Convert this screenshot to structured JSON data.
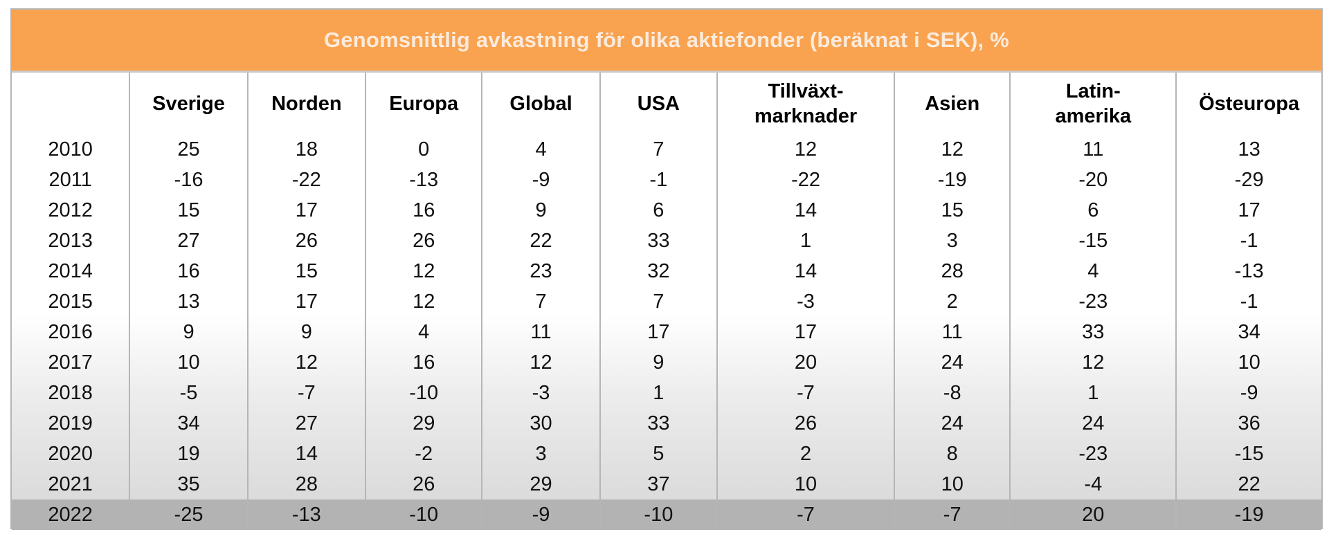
{
  "title": "Genomsnittlig avkastning för olika aktiefonder (beräknat i SEK), %",
  "colors": {
    "header": "#f9a24f",
    "highlight_row": "#b3b3b3"
  },
  "columns": [
    "",
    "Sverige",
    "Norden",
    "Europa",
    "Global",
    "USA",
    "Tillväxt-\nmarknader",
    "Asien",
    "Latin-\namerika",
    "Östeuropa"
  ],
  "rows": [
    [
      "2010",
      "25",
      "18",
      "0",
      "4",
      "7",
      "12",
      "12",
      "11",
      "13"
    ],
    [
      "2011",
      "-16",
      "-22",
      "-13",
      "-9",
      "-1",
      "-22",
      "-19",
      "-20",
      "-29"
    ],
    [
      "2012",
      "15",
      "17",
      "16",
      "9",
      "6",
      "14",
      "15",
      "6",
      "17"
    ],
    [
      "2013",
      "27",
      "26",
      "26",
      "22",
      "33",
      "1",
      "3",
      "-15",
      "-1"
    ],
    [
      "2014",
      "16",
      "15",
      "12",
      "23",
      "32",
      "14",
      "28",
      "4",
      "-13"
    ],
    [
      "2015",
      "13",
      "17",
      "12",
      "7",
      "7",
      "-3",
      "2",
      "-23",
      "-1"
    ],
    [
      "2016",
      "9",
      "9",
      "4",
      "11",
      "17",
      "17",
      "11",
      "33",
      "34"
    ],
    [
      "2017",
      "10",
      "12",
      "16",
      "12",
      "9",
      "20",
      "24",
      "12",
      "10"
    ],
    [
      "2018",
      "-5",
      "-7",
      "-10",
      "-3",
      "1",
      "-7",
      "-8",
      "1",
      "-9"
    ],
    [
      "2019",
      "34",
      "27",
      "29",
      "30",
      "33",
      "26",
      "24",
      "24",
      "36"
    ],
    [
      "2020",
      "19",
      "14",
      "-2",
      "3",
      "5",
      "2",
      "8",
      "-23",
      "-15"
    ],
    [
      "2021",
      "35",
      "28",
      "26",
      "29",
      "37",
      "10",
      "10",
      "-4",
      "22"
    ],
    [
      "2022",
      "-25",
      "-13",
      "-10",
      "-9",
      "-10",
      "-7",
      "-7",
      "20",
      "-19"
    ]
  ]
}
